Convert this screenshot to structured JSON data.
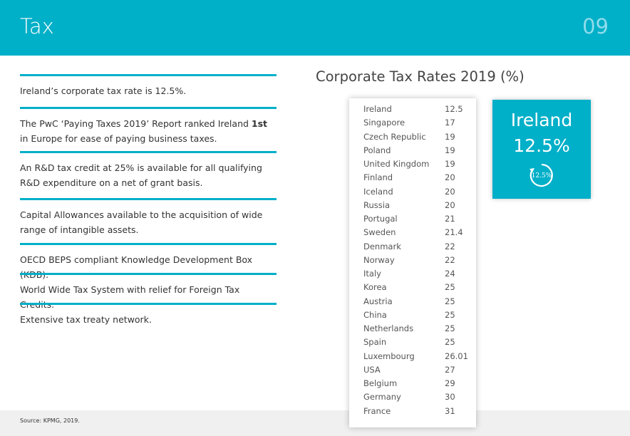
{
  "header": {
    "title": "Tax",
    "page_number": "09"
  },
  "points": [
    [
      "Ireland’s corporate tax rate is 12.5%."
    ],
    [
      "The PwC ‘Paying Taxes 2019’ Report ranked Ireland ",
      "1st",
      " in Europe for ease of paying business taxes."
    ],
    [
      "An R&D tax credit at 25% is available for all qualifying R&D expenditure on a net of grant basis."
    ],
    [
      "Capital Allowances available to the acquisition of wide range of intangible assets."
    ],
    [
      "OECD BEPS compliant Knowledge Development Box (KDB)."
    ],
    [
      "World Wide Tax System with relief for Foreign Tax Credits."
    ],
    [
      "Extensive tax treaty network."
    ]
  ],
  "table": {
    "title": "Corporate Tax Rates 2019 (%)",
    "rows": [
      [
        "Ireland",
        12.5
      ],
      [
        "Singapore",
        17
      ],
      [
        "Czech Republic",
        19
      ],
      [
        "Poland",
        19
      ],
      [
        "United Kingdom",
        19
      ],
      [
        "Finland",
        20
      ],
      [
        "Iceland",
        20
      ],
      [
        "Russia",
        20
      ],
      [
        "Portugal",
        21
      ],
      [
        "Sweden",
        21.4
      ],
      [
        "Denmark",
        22
      ],
      [
        "Norway",
        22
      ],
      [
        "Italy",
        24
      ],
      [
        "Korea",
        25
      ],
      [
        "Austria",
        25
      ],
      [
        "China",
        25
      ],
      [
        "Netherlands",
        25
      ],
      [
        "Spain",
        25
      ],
      [
        "Luxembourg",
        26.01
      ],
      [
        "USA",
        27
      ],
      [
        "Belgium",
        29
      ],
      [
        "Germany",
        30
      ],
      [
        "France",
        31
      ]
    ]
  },
  "callout": {
    "country": "Ireland",
    "rate": "12.5%",
    "icon_label": "12.5%"
  },
  "footer": {
    "source": "Source: KPMG, 2019."
  }
}
